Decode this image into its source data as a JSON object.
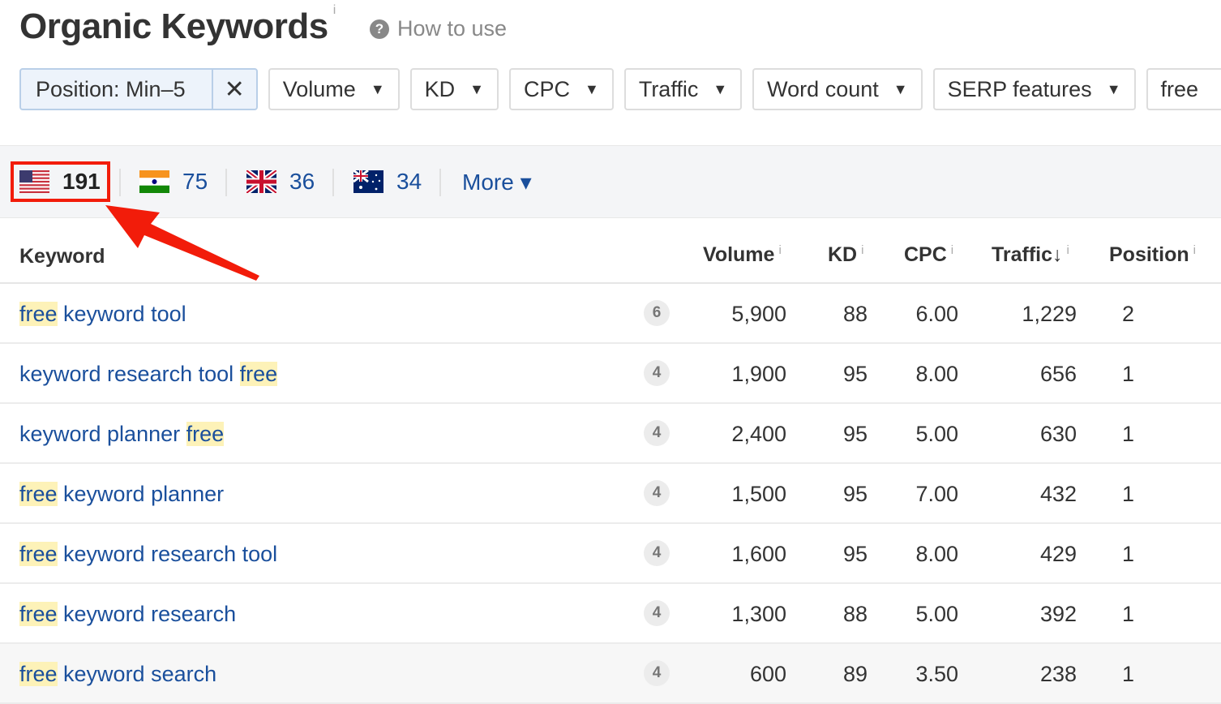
{
  "header": {
    "title": "Organic Keywords",
    "info": "i",
    "how_to_use": "How to use"
  },
  "filters": {
    "position": "Position: Min–5",
    "clear": "✕",
    "items": [
      "Volume",
      "KD",
      "CPC",
      "Traffic",
      "Word count",
      "SERP features"
    ],
    "search_value": "free"
  },
  "countries": [
    {
      "flag": "us-flag",
      "count": "191",
      "selected": true
    },
    {
      "flag": "india-flag",
      "count": "75"
    },
    {
      "flag": "uk-flag",
      "count": "36"
    },
    {
      "flag": "australia-flag",
      "count": "34"
    }
  ],
  "more_label": "More ▾",
  "table": {
    "columns": {
      "keyword": "Keyword",
      "volume": "Volume",
      "kd": "KD",
      "cpc": "CPC",
      "traffic": "Traffic",
      "traffic_sort": "↓",
      "position": "Position",
      "info": "i"
    },
    "rows": [
      {
        "pre": "",
        "hl": "free",
        "post": " keyword tool",
        "serp": "6",
        "volume": "5,900",
        "kd": "88",
        "cpc": "6.00",
        "traffic": "1,229",
        "position": "2"
      },
      {
        "pre": "keyword research tool ",
        "hl": "free",
        "post": "",
        "serp": "4",
        "volume": "1,900",
        "kd": "95",
        "cpc": "8.00",
        "traffic": "656",
        "position": "1"
      },
      {
        "pre": "keyword planner ",
        "hl": "free",
        "post": "",
        "serp": "4",
        "volume": "2,400",
        "kd": "95",
        "cpc": "5.00",
        "traffic": "630",
        "position": "1"
      },
      {
        "pre": "",
        "hl": "free",
        "post": " keyword planner",
        "serp": "4",
        "volume": "1,500",
        "kd": "95",
        "cpc": "7.00",
        "traffic": "432",
        "position": "1"
      },
      {
        "pre": "",
        "hl": "free",
        "post": " keyword research tool",
        "serp": "4",
        "volume": "1,600",
        "kd": "95",
        "cpc": "8.00",
        "traffic": "429",
        "position": "1"
      },
      {
        "pre": "",
        "hl": "free",
        "post": " keyword research",
        "serp": "4",
        "volume": "1,300",
        "kd": "88",
        "cpc": "5.00",
        "traffic": "392",
        "position": "1"
      },
      {
        "pre": "",
        "hl": "free",
        "post": " keyword search",
        "serp": "4",
        "volume": "600",
        "kd": "89",
        "cpc": "3.50",
        "traffic": "238",
        "position": "1"
      }
    ]
  },
  "colors": {
    "link": "#1a4f9c",
    "highlight": "#fdf2b8",
    "annotation": "#f21c0a"
  }
}
